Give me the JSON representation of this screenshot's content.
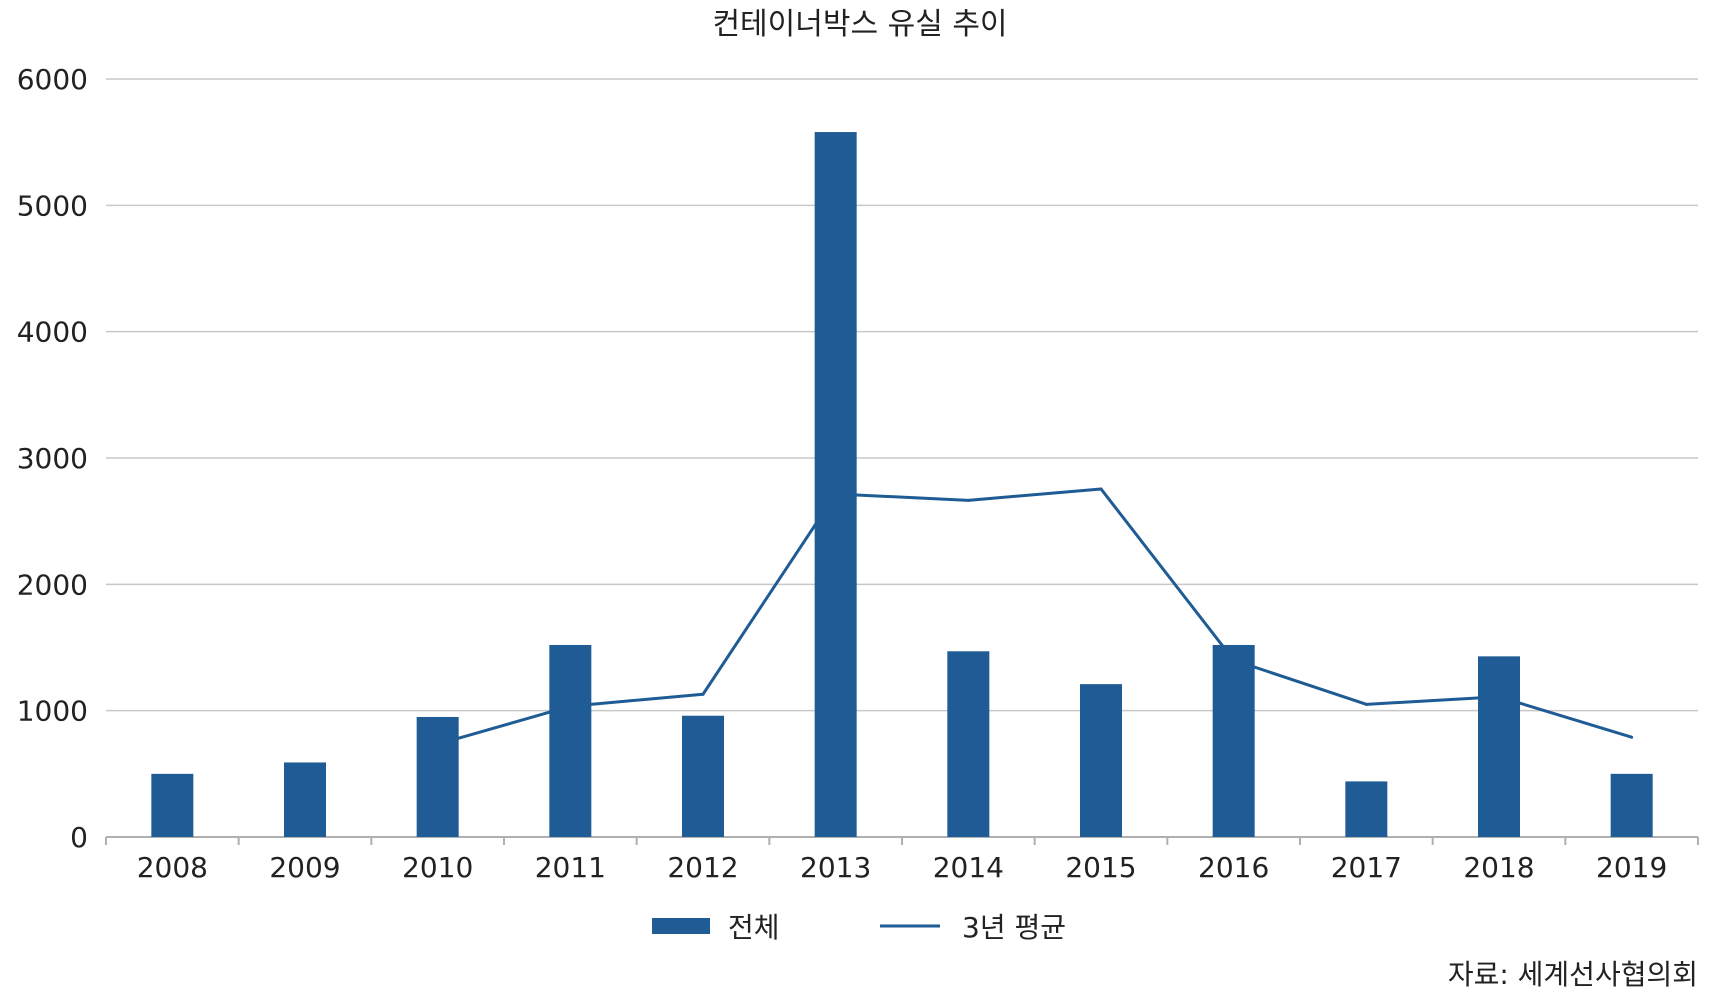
{
  "chart_data": {
    "type": "bar",
    "title": "컨테이너박스 유실 추이",
    "categories": [
      "2008",
      "2009",
      "2010",
      "2011",
      "2012",
      "2013",
      "2014",
      "2015",
      "2016",
      "2017",
      "2018",
      "2019"
    ],
    "series": [
      {
        "name": "전체",
        "type": "bar",
        "color": "#1f5b94",
        "values": [
          500,
          590,
          950,
          1520,
          960,
          5580,
          1470,
          1210,
          1520,
          440,
          1430,
          500
        ]
      },
      {
        "name": "3년 평균",
        "type": "line",
        "color": "#1f5b94",
        "values": [
          null,
          null,
          735,
          1035,
          1130,
          2715,
          2665,
          2755,
          1400,
          1050,
          1110,
          790
        ]
      }
    ],
    "ylim": [
      0,
      6000
    ],
    "yticks": [
      "0",
      "1000",
      "2000",
      "3000",
      "4000",
      "5000",
      "6000"
    ],
    "grid": true,
    "legend_position": "bottom"
  },
  "source_note": "자료: 세계선사협의회"
}
